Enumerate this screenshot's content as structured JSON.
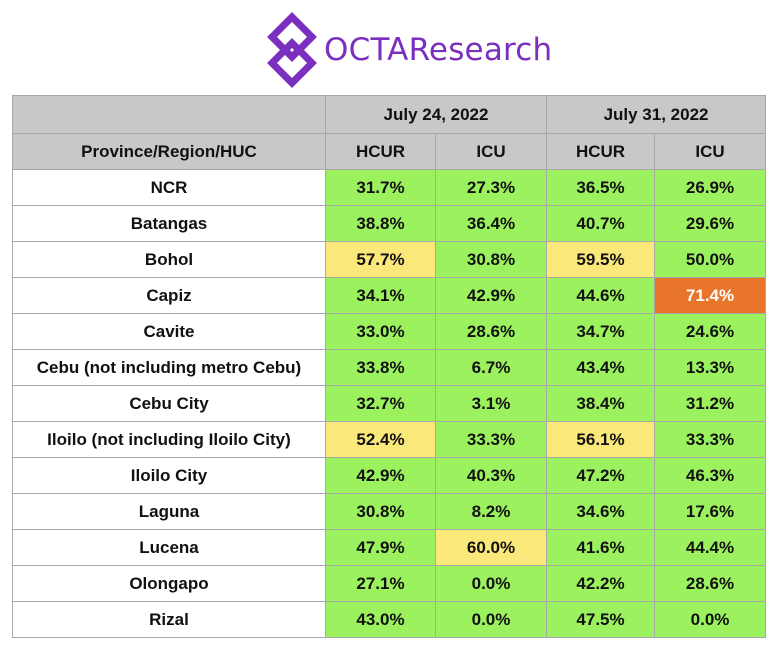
{
  "brand": {
    "name": "OCTAResearch",
    "color": "#7b2fbe"
  },
  "colors": {
    "green": "#9cf25e",
    "yellow": "#fbe87a",
    "orange": "#e8752a",
    "header": "#c8c8c8"
  },
  "header": {
    "dates": [
      "July 24, 2022",
      "July 31, 2022"
    ],
    "columns": [
      "Province/Region/HUC",
      "HCUR",
      "ICU",
      "HCUR",
      "ICU"
    ]
  },
  "rows": [
    {
      "name": "NCR",
      "values": [
        "31.7%",
        "27.3%",
        "36.5%",
        "26.9%"
      ],
      "status": [
        "green",
        "green",
        "green",
        "green"
      ]
    },
    {
      "name": "Batangas",
      "values": [
        "38.8%",
        "36.4%",
        "40.7%",
        "29.6%"
      ],
      "status": [
        "green",
        "green",
        "green",
        "green"
      ]
    },
    {
      "name": "Bohol",
      "values": [
        "57.7%",
        "30.8%",
        "59.5%",
        "50.0%"
      ],
      "status": [
        "yellow",
        "green",
        "yellow",
        "green"
      ]
    },
    {
      "name": "Capiz",
      "values": [
        "34.1%",
        "42.9%",
        "44.6%",
        "71.4%"
      ],
      "status": [
        "green",
        "green",
        "green",
        "orange"
      ]
    },
    {
      "name": "Cavite",
      "values": [
        "33.0%",
        "28.6%",
        "34.7%",
        "24.6%"
      ],
      "status": [
        "green",
        "green",
        "green",
        "green"
      ]
    },
    {
      "name": "Cebu (not including metro Cebu)",
      "values": [
        "33.8%",
        "6.7%",
        "43.4%",
        "13.3%"
      ],
      "status": [
        "green",
        "green",
        "green",
        "green"
      ]
    },
    {
      "name": "Cebu City",
      "values": [
        "32.7%",
        "3.1%",
        "38.4%",
        "31.2%"
      ],
      "status": [
        "green",
        "green",
        "green",
        "green"
      ]
    },
    {
      "name": "Iloilo (not including Iloilo City)",
      "values": [
        "52.4%",
        "33.3%",
        "56.1%",
        "33.3%"
      ],
      "status": [
        "yellow",
        "green",
        "yellow",
        "green"
      ]
    },
    {
      "name": "Iloilo City",
      "values": [
        "42.9%",
        "40.3%",
        "47.2%",
        "46.3%"
      ],
      "status": [
        "green",
        "green",
        "green",
        "green"
      ]
    },
    {
      "name": "Laguna",
      "values": [
        "30.8%",
        "8.2%",
        "34.6%",
        "17.6%"
      ],
      "status": [
        "green",
        "green",
        "green",
        "green"
      ]
    },
    {
      "name": "Lucena",
      "values": [
        "47.9%",
        "60.0%",
        "41.6%",
        "44.4%"
      ],
      "status": [
        "green",
        "yellow",
        "green",
        "green"
      ]
    },
    {
      "name": "Olongapo",
      "values": [
        "27.1%",
        "0.0%",
        "42.2%",
        "28.6%"
      ],
      "status": [
        "green",
        "green",
        "green",
        "green"
      ]
    },
    {
      "name": "Rizal",
      "values": [
        "43.0%",
        "0.0%",
        "47.5%",
        "0.0%"
      ],
      "status": [
        "green",
        "green",
        "green",
        "green"
      ]
    }
  ]
}
